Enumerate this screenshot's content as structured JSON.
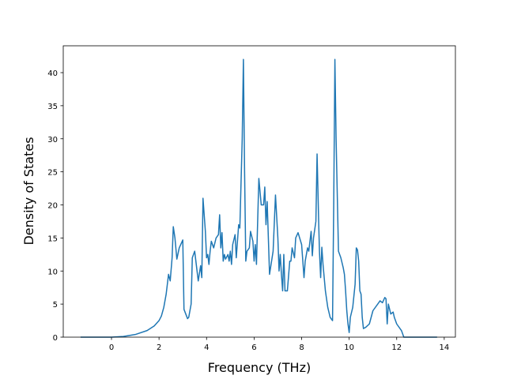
{
  "chart_data": {
    "type": "line",
    "x_label": "Frequency (THz)",
    "y_label": "Density of States",
    "xlim": [
      -2.03,
      14.47
    ],
    "ylim": [
      0,
      44.06
    ],
    "xticks": [
      0,
      2,
      4,
      6,
      8,
      10,
      12,
      14
    ],
    "yticks": [
      0,
      5,
      10,
      15,
      20,
      25,
      30,
      35,
      40
    ],
    "series": [
      {
        "color": "#1f77b4",
        "x": [
          -1.3,
          0,
          0.5,
          1.0,
          1.5,
          1.8,
          2.0,
          2.1,
          2.2,
          2.3,
          2.4,
          2.47,
          2.55,
          2.6,
          2.67,
          2.75,
          2.85,
          3.0,
          3.05,
          3.2,
          3.25,
          3.35,
          3.4,
          3.5,
          3.6,
          3.65,
          3.75,
          3.8,
          3.85,
          3.95,
          4.0,
          4.05,
          4.1,
          4.15,
          4.2,
          4.3,
          4.4,
          4.5,
          4.55,
          4.6,
          4.65,
          4.7,
          4.75,
          4.8,
          4.9,
          4.95,
          5.0,
          5.05,
          5.1,
          5.2,
          5.25,
          5.35,
          5.4,
          5.5,
          5.55,
          5.6,
          5.65,
          5.7,
          5.8,
          5.85,
          5.95,
          6.0,
          6.05,
          6.1,
          6.2,
          6.3,
          6.4,
          6.45,
          6.5,
          6.55,
          6.65,
          6.8,
          6.9,
          7.0,
          7.05,
          7.1,
          7.15,
          7.2,
          7.25,
          7.3,
          7.4,
          7.5,
          7.55,
          7.6,
          7.7,
          7.75,
          7.85,
          8.0,
          8.1,
          8.15,
          8.25,
          8.3,
          8.4,
          8.45,
          8.5,
          8.6,
          8.65,
          8.72,
          8.75,
          8.8,
          8.85,
          8.9,
          9.0,
          9.1,
          9.2,
          9.3,
          9.35,
          9.4,
          9.45,
          9.55,
          9.65,
          9.75,
          9.8,
          9.85,
          9.9,
          9.95,
          10.0,
          10.05,
          10.15,
          10.25,
          10.3,
          10.35,
          10.4,
          10.45,
          10.5,
          10.55,
          10.6,
          10.7,
          10.85,
          11.0,
          11.2,
          11.3,
          11.4,
          11.5,
          11.55,
          11.6,
          11.65,
          11.75,
          11.85,
          11.9,
          12.0,
          12.2,
          12.3,
          13.7
        ],
        "values": [
          0,
          0,
          0.1,
          0.4,
          1.0,
          1.7,
          2.5,
          3.2,
          4.5,
          6.5,
          9.5,
          8.5,
          12,
          16.7,
          15,
          11.8,
          13.5,
          14.7,
          4.2,
          2.8,
          3,
          5,
          12,
          13,
          10,
          8.5,
          10.8,
          9,
          21,
          16,
          12,
          12.5,
          11,
          13,
          14.5,
          13.5,
          15,
          15.5,
          18.5,
          13.5,
          15.8,
          11.5,
          12.5,
          11.8,
          12.5,
          11.5,
          13,
          11,
          14,
          15.5,
          12,
          17,
          16.5,
          30,
          42,
          25,
          11.5,
          13,
          13.5,
          16,
          14.5,
          11.5,
          14,
          11,
          24,
          20,
          20,
          22.7,
          17,
          20.5,
          9.5,
          13,
          21.5,
          15,
          10,
          12.5,
          9.5,
          7,
          12.5,
          7,
          7,
          11.5,
          11.5,
          13.5,
          12,
          15,
          15.8,
          14,
          9,
          11.5,
          13.5,
          13,
          16,
          12.3,
          15,
          17.5,
          27.7,
          17,
          13,
          9,
          13.6,
          11,
          7,
          4.5,
          3,
          2.5,
          20,
          42,
          30,
          13,
          12,
          10.5,
          9.5,
          7,
          4,
          2,
          0.7,
          3,
          4.5,
          8,
          13.5,
          13.2,
          11.5,
          7,
          6.5,
          3,
          1.3,
          1.5,
          2,
          4,
          5,
          5.5,
          5.2,
          6,
          5.8,
          2,
          5,
          3.5,
          3.8,
          3,
          2,
          1,
          0,
          0
        ]
      }
    ]
  }
}
